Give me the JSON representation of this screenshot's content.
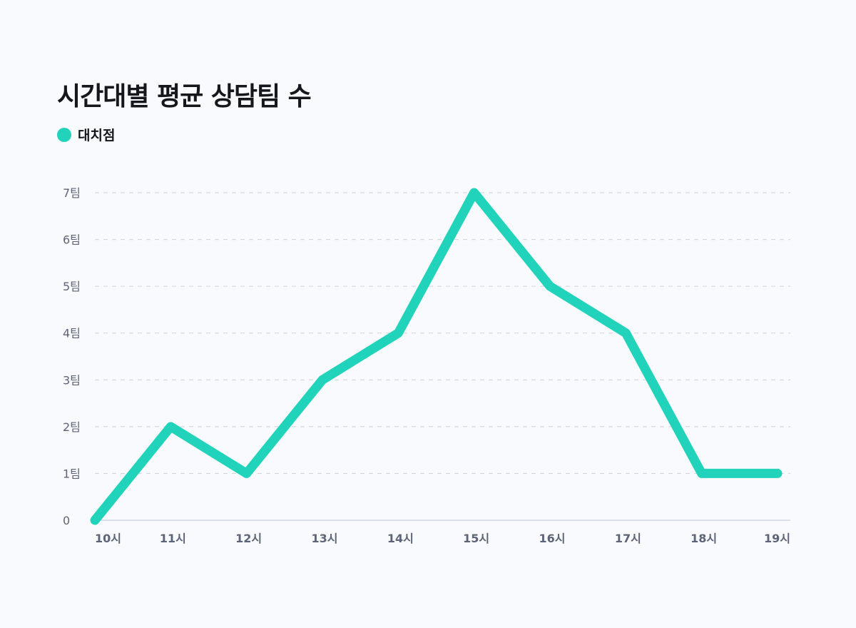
{
  "chart_data": {
    "type": "line",
    "title": "시간대별 평균 상담팀 수",
    "categories": [
      "10시",
      "11시",
      "12시",
      "13시",
      "14시",
      "15시",
      "16시",
      "17시",
      "18시",
      "19시"
    ],
    "series": [
      {
        "name": "대치점",
        "values": [
          0,
          2,
          1,
          3,
          4,
          7,
          5,
          4,
          1,
          1
        ],
        "color": "#22d3bb"
      }
    ],
    "y_ticks": [
      {
        "value": 0,
        "label": "0"
      },
      {
        "value": 1,
        "label": "1팀"
      },
      {
        "value": 2,
        "label": "2팀"
      },
      {
        "value": 3,
        "label": "3팀"
      },
      {
        "value": 4,
        "label": "4팀"
      },
      {
        "value": 5,
        "label": "5팀"
      },
      {
        "value": 6,
        "label": "6팀"
      },
      {
        "value": 7,
        "label": "7팀"
      }
    ],
    "ylim": [
      0,
      7
    ],
    "grid": true,
    "legend": "top-left"
  }
}
